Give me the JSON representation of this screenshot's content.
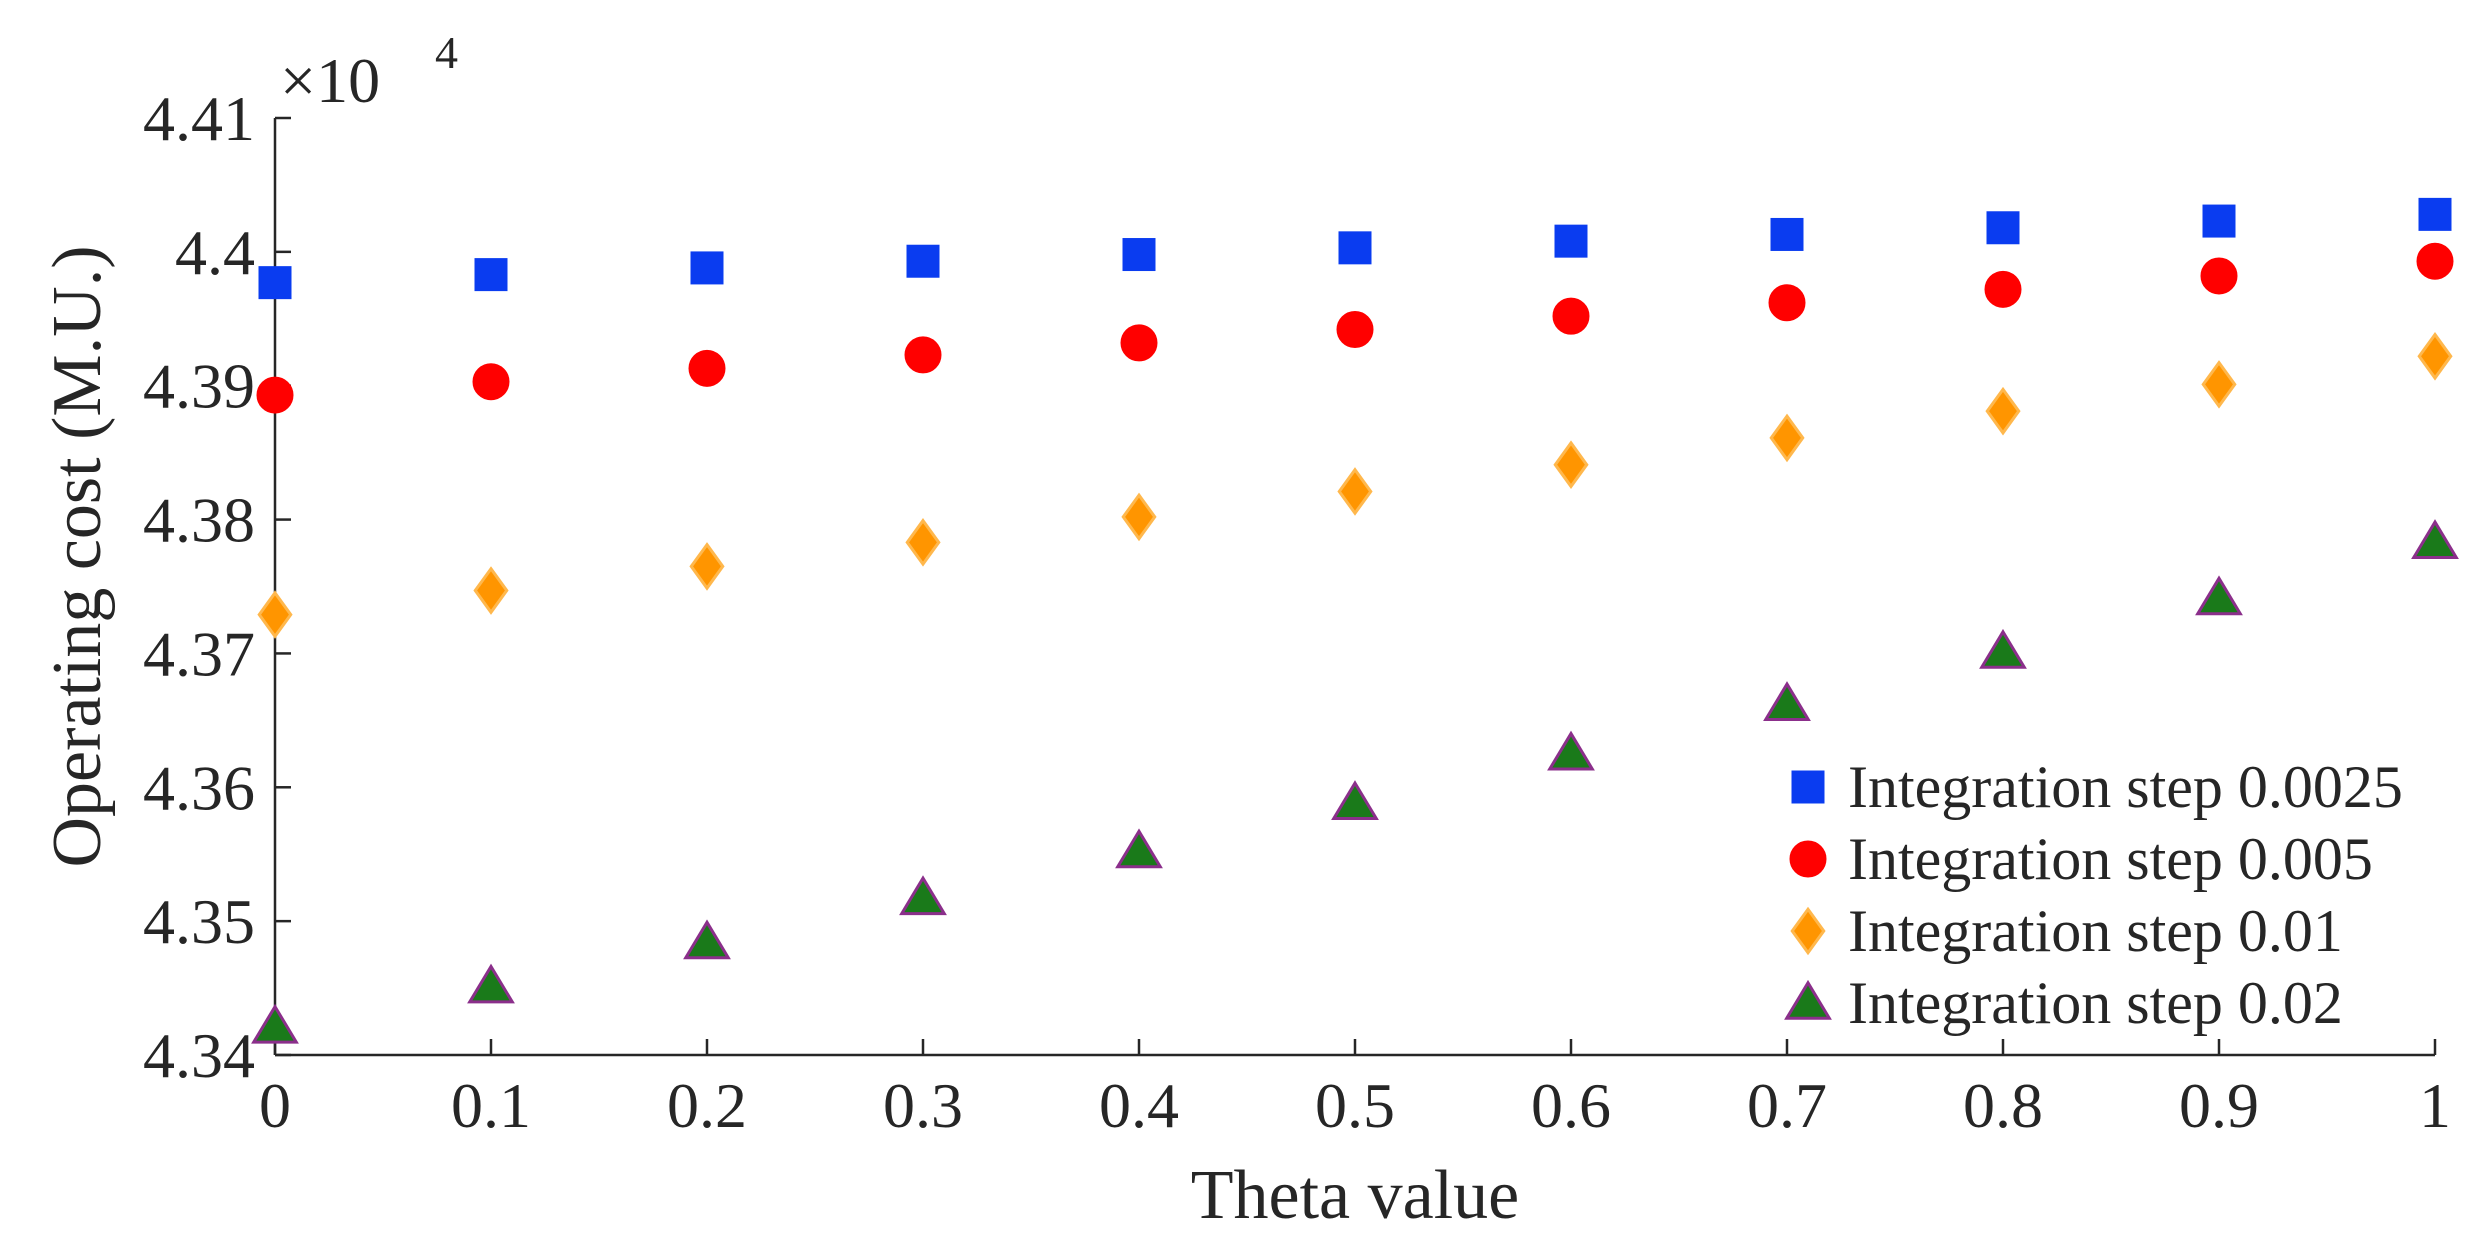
{
  "chart_data": {
    "type": "scatter",
    "title": "",
    "xlabel": "Theta value",
    "ylabel": "Operating cost (M.U.)",
    "y_multiplier_label": {
      "base": "×10",
      "exponent": "4"
    },
    "xlim": [
      0,
      1
    ],
    "ylim": [
      4.34,
      4.41
    ],
    "x_ticks": [
      0,
      0.1,
      0.2,
      0.3,
      0.4,
      0.5,
      0.6,
      0.7,
      0.8,
      0.9,
      1
    ],
    "x_tick_labels": [
      "0",
      "0.1",
      "0.2",
      "0.3",
      "0.4",
      "0.5",
      "0.6",
      "0.7",
      "0.8",
      "0.9",
      "1"
    ],
    "y_ticks": [
      4.34,
      4.35,
      4.36,
      4.37,
      4.38,
      4.39,
      4.4,
      4.41
    ],
    "y_tick_labels": [
      "4.34",
      "4.35",
      "4.36",
      "4.37",
      "4.38",
      "4.39",
      "4.4",
      "4.41"
    ],
    "grid": false,
    "legend_position": "bottom-right",
    "x": [
      0,
      0.1,
      0.2,
      0.3,
      0.4,
      0.5,
      0.6,
      0.7,
      0.8,
      0.9,
      1
    ],
    "series": [
      {
        "name": "Integration step 0.0025",
        "marker": "square",
        "color": "#0a3cf0",
        "edge_color": "#0a3cf0",
        "values": [
          4.3977,
          4.3983,
          4.3988,
          4.3993,
          4.3998,
          4.4003,
          4.4008,
          4.4013,
          4.4018,
          4.4023,
          4.4028
        ]
      },
      {
        "name": "Integration step 0.005",
        "marker": "circle",
        "color": "#ff0000",
        "edge_color": "#ff0000",
        "values": [
          4.3893,
          4.3903,
          4.3913,
          4.3923,
          4.3932,
          4.3942,
          4.3952,
          4.3962,
          4.3972,
          4.3982,
          4.3993
        ]
      },
      {
        "name": "Integration step 0.01",
        "marker": "diamond",
        "color": "#ff9500",
        "edge_color": "#ffb84d",
        "values": [
          4.3729,
          4.3747,
          4.3765,
          4.3783,
          4.3802,
          4.3821,
          4.3841,
          4.3861,
          4.3881,
          4.3901,
          4.3922
        ]
      },
      {
        "name": "Integration step 0.02",
        "marker": "triangle",
        "color": "#1a7a1a",
        "edge_color": "#8b2f8b",
        "values": [
          4.3421,
          4.3451,
          4.3484,
          4.3517,
          4.3552,
          4.3588,
          4.3625,
          4.3662,
          4.3701,
          4.3741,
          4.3783
        ]
      }
    ]
  }
}
